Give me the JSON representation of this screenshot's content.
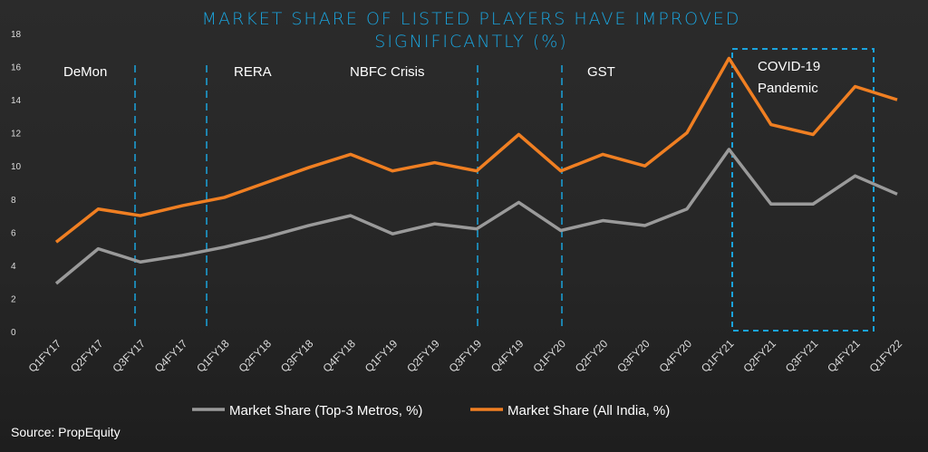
{
  "chart_data": {
    "type": "line",
    "title_line1": "MARKET SHARE OF LISTED PLAYERS HAVE IMPROVED",
    "title_line2": "SIGNIFICANTLY (%)",
    "categories": [
      "Q1FY17",
      "Q2FY17",
      "Q3FY17",
      "Q4FY17",
      "Q1FY18",
      "Q2FY18",
      "Q3FY18",
      "Q4FY18",
      "Q1FY19",
      "Q2FY19",
      "Q3FY19",
      "Q4FY19",
      "Q1FY20",
      "Q2FY20",
      "Q3FY20",
      "Q4FY20",
      "Q1FY21",
      "Q2FY21",
      "Q3FY21",
      "Q4FY21",
      "Q1FY22"
    ],
    "series": [
      {
        "name": "Market Share (Top-3 Metros, %)",
        "color": "#9a9a9a",
        "values": [
          2.9,
          5.0,
          4.2,
          4.6,
          5.1,
          5.7,
          6.4,
          7.0,
          5.9,
          6.5,
          6.2,
          7.8,
          6.1,
          6.7,
          6.4,
          7.4,
          11.0,
          7.7,
          7.7,
          9.4,
          8.3
        ]
      },
      {
        "name": "Market Share (All India, %)",
        "color": "#f07f22",
        "values": [
          5.4,
          7.4,
          7.0,
          7.6,
          8.1,
          9.0,
          9.9,
          10.7,
          9.7,
          10.2,
          9.7,
          11.9,
          9.7,
          10.7,
          10.0,
          12.0,
          16.5,
          12.5,
          11.9,
          14.8,
          14.0
        ]
      }
    ],
    "yticks": [
      0,
      2,
      4,
      6,
      8,
      10,
      12,
      14,
      16,
      18
    ],
    "ylim": [
      0,
      18
    ],
    "events": [
      "DeMon",
      "RERA",
      "NBFC Crisis",
      "GST",
      "COVID-19",
      "Pandemic"
    ],
    "legend_position": "bottom",
    "source": "Source: PropEquity"
  }
}
